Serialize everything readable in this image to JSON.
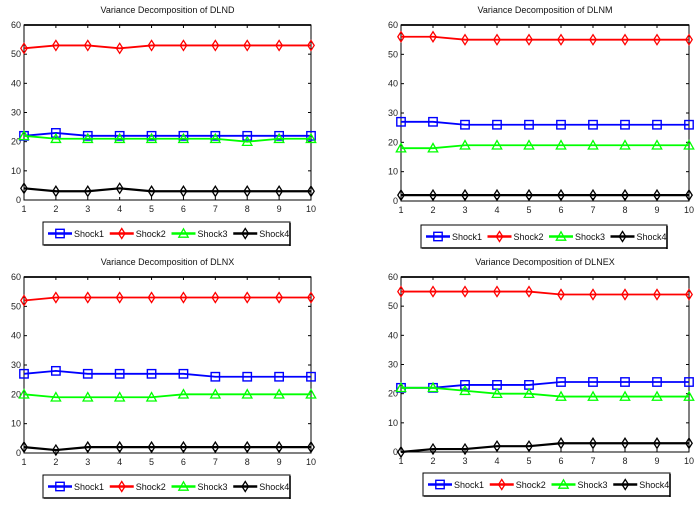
{
  "chart_data": [
    {
      "type": "line",
      "title": "Variance Decomposition of DLND",
      "xlabel": "",
      "ylabel": "",
      "x": [
        1,
        2,
        3,
        4,
        5,
        6,
        7,
        8,
        9,
        10
      ],
      "x_tick_labels": [
        "1",
        "2",
        "3",
        "4",
        "5",
        "6",
        "7",
        "8",
        "9",
        "10"
      ],
      "y_tick_labels": [
        "0",
        "10",
        "20",
        "30",
        "40",
        "50",
        "60"
      ],
      "ylim": [
        0,
        60
      ],
      "xlim": [
        1,
        10
      ],
      "grid": false,
      "legend_position": "bottom",
      "series": [
        {
          "name": "Shock1",
          "color": "#0000ff",
          "marker": "square",
          "values": [
            22,
            23,
            22,
            22,
            22,
            22,
            22,
            22,
            22,
            22
          ]
        },
        {
          "name": "Shock2",
          "color": "#ff0000",
          "marker": "diamond",
          "values": [
            52,
            53,
            53,
            52,
            53,
            53,
            53,
            53,
            53,
            53
          ]
        },
        {
          "name": "Shock3",
          "color": "#00ff00",
          "marker": "triangle",
          "values": [
            22,
            21,
            21,
            21,
            21,
            21,
            21,
            20,
            21,
            21
          ]
        },
        {
          "name": "Shock4",
          "color": "#000000",
          "marker": "diamond",
          "values": [
            4,
            3,
            3,
            4,
            3,
            3,
            3,
            3,
            3,
            3
          ]
        }
      ]
    },
    {
      "type": "line",
      "title": "Variance Decomposition of DLNM",
      "xlabel": "",
      "ylabel": "",
      "x": [
        1,
        2,
        3,
        4,
        5,
        6,
        7,
        8,
        9,
        10
      ],
      "x_tick_labels": [
        "1",
        "2",
        "3",
        "4",
        "5",
        "6",
        "7",
        "8",
        "9",
        "10"
      ],
      "y_tick_labels": [
        "0",
        "10",
        "20",
        "30",
        "40",
        "50",
        "60"
      ],
      "ylim": [
        0,
        60
      ],
      "xlim": [
        1,
        10
      ],
      "grid": false,
      "legend_position": "bottom",
      "series": [
        {
          "name": "Shock1",
          "color": "#0000ff",
          "marker": "square",
          "values": [
            27,
            27,
            26,
            26,
            26,
            26,
            26,
            26,
            26,
            26
          ]
        },
        {
          "name": "Shock2",
          "color": "#ff0000",
          "marker": "diamond",
          "values": [
            56,
            56,
            55,
            55,
            55,
            55,
            55,
            55,
            55,
            55
          ]
        },
        {
          "name": "Shock3",
          "color": "#00ff00",
          "marker": "triangle",
          "values": [
            18,
            18,
            19,
            19,
            19,
            19,
            19,
            19,
            19,
            19
          ]
        },
        {
          "name": "Shock4",
          "color": "#000000",
          "marker": "diamond",
          "values": [
            2,
            2,
            2,
            2,
            2,
            2,
            2,
            2,
            2,
            2
          ]
        }
      ]
    },
    {
      "type": "line",
      "title": "Variance Decomposition of DLNX",
      "xlabel": "",
      "ylabel": "",
      "x": [
        1,
        2,
        3,
        4,
        5,
        6,
        7,
        8,
        9,
        10
      ],
      "x_tick_labels": [
        "1",
        "2",
        "3",
        "4",
        "5",
        "6",
        "7",
        "8",
        "9",
        "10"
      ],
      "y_tick_labels": [
        "0",
        "10",
        "20",
        "30",
        "40",
        "50",
        "60"
      ],
      "ylim": [
        0,
        60
      ],
      "xlim": [
        1,
        10
      ],
      "grid": false,
      "legend_position": "bottom",
      "series": [
        {
          "name": "Shock1",
          "color": "#0000ff",
          "marker": "square",
          "values": [
            27,
            28,
            27,
            27,
            27,
            27,
            26,
            26,
            26,
            26
          ]
        },
        {
          "name": "Shock2",
          "color": "#ff0000",
          "marker": "diamond",
          "values": [
            52,
            53,
            53,
            53,
            53,
            53,
            53,
            53,
            53,
            53
          ]
        },
        {
          "name": "Shock3",
          "color": "#00ff00",
          "marker": "triangle",
          "values": [
            20,
            19,
            19,
            19,
            19,
            20,
            20,
            20,
            20,
            20
          ]
        },
        {
          "name": "Shock4",
          "color": "#000000",
          "marker": "diamond",
          "values": [
            2,
            1,
            2,
            2,
            2,
            2,
            2,
            2,
            2,
            2
          ]
        }
      ]
    },
    {
      "type": "line",
      "title": "Variance Decomposition of DLNEX",
      "xlabel": "",
      "ylabel": "",
      "x": [
        1,
        2,
        3,
        4,
        5,
        6,
        7,
        8,
        9,
        10
      ],
      "x_tick_labels": [
        "1",
        "2",
        "3",
        "4",
        "5",
        "6",
        "7",
        "8",
        "9",
        "10"
      ],
      "y_tick_labels": [
        "0",
        "10",
        "20",
        "30",
        "40",
        "50",
        "60"
      ],
      "ylim": [
        0,
        60
      ],
      "xlim": [
        1,
        10
      ],
      "grid": false,
      "legend_position": "bottom",
      "series": [
        {
          "name": "Shock1",
          "color": "#0000ff",
          "marker": "square",
          "values": [
            22,
            22,
            23,
            23,
            23,
            24,
            24,
            24,
            24,
            24
          ]
        },
        {
          "name": "Shock2",
          "color": "#ff0000",
          "marker": "diamond",
          "values": [
            55,
            55,
            55,
            55,
            55,
            54,
            54,
            54,
            54,
            54
          ]
        },
        {
          "name": "Shock3",
          "color": "#00ff00",
          "marker": "triangle",
          "values": [
            22,
            22,
            21,
            20,
            20,
            19,
            19,
            19,
            19,
            19
          ]
        },
        {
          "name": "Shock4",
          "color": "#000000",
          "marker": "diamond",
          "values": [
            0,
            1,
            1,
            2,
            2,
            3,
            3,
            3,
            3,
            3
          ]
        }
      ]
    }
  ]
}
